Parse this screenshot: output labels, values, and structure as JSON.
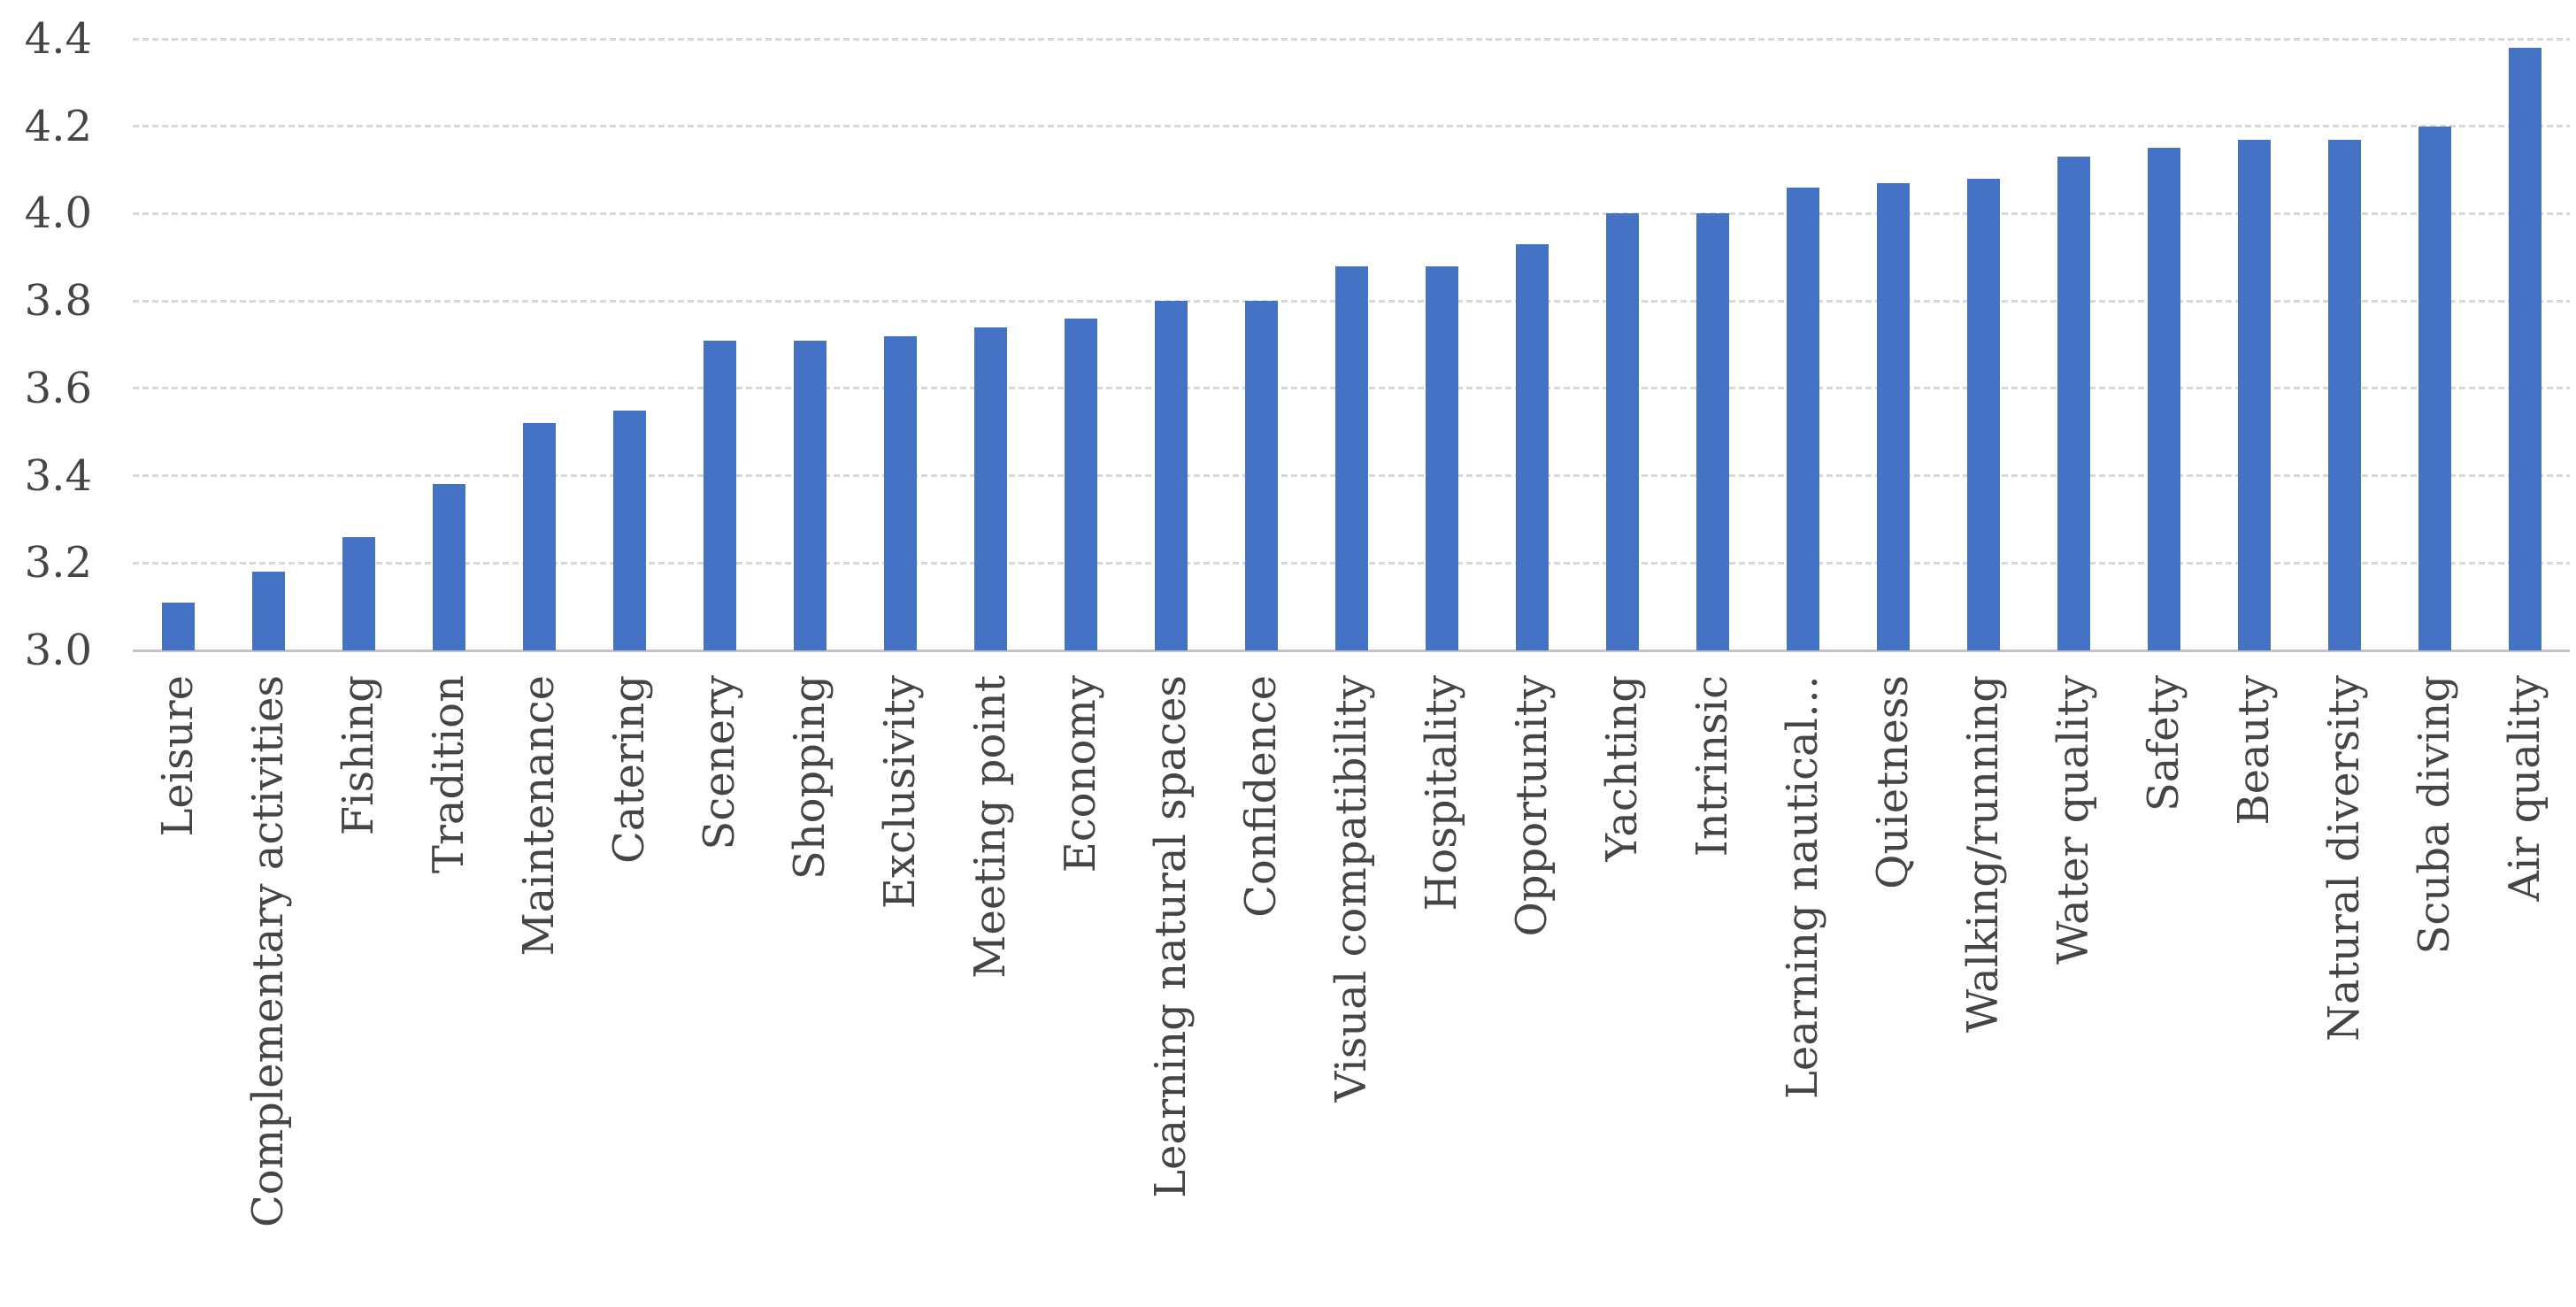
{
  "chart_data": {
    "type": "bar",
    "title": "",
    "xlabel": "",
    "ylabel": "",
    "categories": [
      "Leisure",
      "Complementary activities",
      "Fishing",
      "Tradition",
      "Maintenance",
      "Catering",
      "Scenery",
      "Shopping",
      "Exclusivity",
      "Meeting point",
      "Economy",
      "Learning natural spaces",
      "Confidence",
      "Visual compatibility",
      "Hospitality",
      "Opportunity",
      "Yachting",
      "Intrinsic",
      "Learning nautical…",
      "Quietness",
      "Walking/running",
      "Water quality",
      "Safety",
      "Beauty",
      "Natural diversity",
      "Scuba diving",
      "Air quality"
    ],
    "values": [
      3.11,
      3.18,
      3.26,
      3.38,
      3.52,
      3.55,
      3.71,
      3.71,
      3.72,
      3.74,
      3.76,
      3.8,
      3.8,
      3.88,
      3.88,
      3.93,
      4.0,
      4.0,
      4.06,
      4.07,
      4.08,
      4.13,
      4.15,
      4.17,
      4.17,
      4.2,
      4.38
    ],
    "ylim": [
      3.0,
      4.4
    ],
    "ytick_step": 0.2,
    "yticks": [
      "4.4",
      "4.2",
      "4.0",
      "3.8",
      "3.6",
      "3.4",
      "3.2",
      "3.0"
    ],
    "grid": "horizontal-dashed",
    "legend": "none",
    "x_label_rotation_deg": 90,
    "colors": {
      "bar_fill": "#4472C4",
      "gridline": "#d8d8d8",
      "axis_line": "#c3c3c3",
      "tick_text": "#454545"
    }
  }
}
